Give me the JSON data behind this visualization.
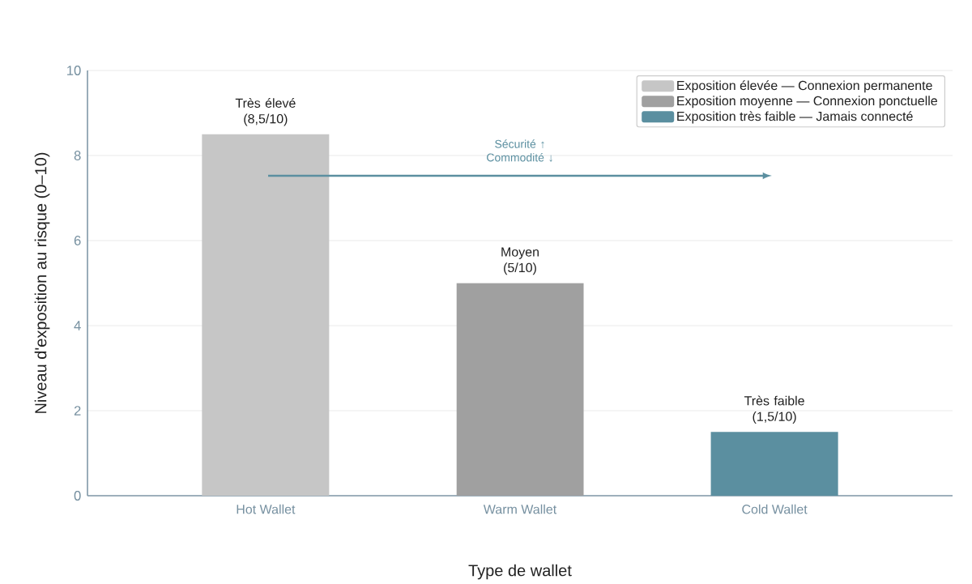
{
  "chart_data": {
    "type": "bar",
    "categories": [
      "Hot Wallet",
      "Warm Wallet",
      "Cold Wallet"
    ],
    "series": [
      {
        "name": "Exposition élevée — Connexion permanente",
        "color": "#c6c6c6",
        "values": [
          8.5,
          null,
          null
        ],
        "value_labels": [
          "Très élevé (8,5/10)",
          null,
          null
        ]
      },
      {
        "name": "Exposition moyenne — Connexion ponctuelle",
        "color": "#a0a0a0",
        "values": [
          null,
          5,
          null
        ],
        "value_labels": [
          null,
          "Moyen (5/10)",
          null
        ]
      },
      {
        "name": "Exposition très faible — Jamais connecté",
        "color": "#5b8fa0",
        "values": [
          null,
          null,
          1.5
        ],
        "value_labels": [
          null,
          null,
          "Très faible (1,5/10)"
        ]
      }
    ],
    "xlabel": "Type de wallet",
    "ylabel": "Niveau d'exposition au risque (0–10)",
    "ylim": [
      0,
      10
    ],
    "yticks": [
      0,
      2,
      4,
      6,
      8,
      10
    ],
    "grid": "y",
    "legend": "top right",
    "annotations": [
      "Sécurité ↑ Commodité ↓"
    ]
  }
}
